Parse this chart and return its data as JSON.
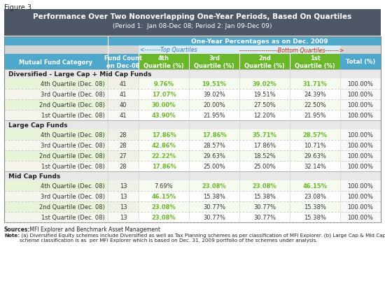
{
  "figure_label": "Figure 3",
  "title_line1": "Performance Over Two Nonoverlapping One-Year Periods, Based On Quartiles",
  "title_line2": "(Period 1:  Jan 08-Dec 08; Period 2: Jan 09-Dec 09)",
  "header_top": "One-Year Percentages as on Dec. 2009",
  "col_headers": [
    "Mutual Fund Category",
    "Fund Count\non Dec-08",
    "4th\nQuartile (%)",
    "3rd\nQuartile (%)",
    "2nd\nQuartile (%)",
    "1st\nQuartile (%)",
    "Total (%)"
  ],
  "sections": [
    {
      "section_label": "Diversified - Large Cap + Mid Cap Funds",
      "rows": [
        {
          "label": "4th Quartile (Dec. 08)",
          "count": "41",
          "vals": [
            "9.76%",
            "19.51%",
            "39.02%",
            "31.71%"
          ],
          "total": "100.00%",
          "green_cols": [
            0,
            1,
            2,
            3
          ]
        },
        {
          "label": "3rd Quartile (Dec. 08)",
          "count": "41",
          "vals": [
            "17.07%",
            "39.02%",
            "19.51%",
            "24.39%"
          ],
          "total": "100.00%",
          "green_cols": [
            0
          ]
        },
        {
          "label": "2nd Quartile (Dec. 08)",
          "count": "40",
          "vals": [
            "30.00%",
            "20.00%",
            "27.50%",
            "22.50%"
          ],
          "total": "100.00%",
          "green_cols": [
            0
          ]
        },
        {
          "label": "1st Quartile (Dec. 08)",
          "count": "41",
          "vals": [
            "43.90%",
            "21.95%",
            "12.20%",
            "21.95%"
          ],
          "total": "100.00%",
          "green_cols": [
            0
          ]
        }
      ]
    },
    {
      "section_label": "Large Cap Funds",
      "rows": [
        {
          "label": "4th Quartile (Dec. 08)",
          "count": "28",
          "vals": [
            "17.86%",
            "17.86%",
            "35.71%",
            "28.57%"
          ],
          "total": "100.00%",
          "green_cols": [
            0,
            1,
            2,
            3
          ]
        },
        {
          "label": "3rd Quartile (Dec. 08)",
          "count": "28",
          "vals": [
            "42.86%",
            "28.57%",
            "17.86%",
            "10.71%"
          ],
          "total": "100.00%",
          "green_cols": [
            0
          ]
        },
        {
          "label": "2nd Quartile (Dec. 08)",
          "count": "27",
          "vals": [
            "22.22%",
            "29.63%",
            "18.52%",
            "29.63%"
          ],
          "total": "100.00%",
          "green_cols": [
            0
          ]
        },
        {
          "label": "1st Quartile (Dec. 08)",
          "count": "28",
          "vals": [
            "17.86%",
            "25.00%",
            "25.00%",
            "32.14%"
          ],
          "total": "100.00%",
          "green_cols": [
            0
          ]
        }
      ]
    },
    {
      "section_label": "Mid Cap Funds",
      "rows": [
        {
          "label": "4th Quartile (Dec. 08)",
          "count": "13",
          "vals": [
            "7.69%",
            "23.08%",
            "23.08%",
            "46.15%"
          ],
          "total": "100.00%",
          "green_cols": [
            1,
            2,
            3
          ]
        },
        {
          "label": "3rd Quartile (Dec. 08)",
          "count": "13",
          "vals": [
            "46.15%",
            "15.38%",
            "15.38%",
            "23.08%"
          ],
          "total": "100.00%",
          "green_cols": [
            0
          ]
        },
        {
          "label": "2nd Quartile (Dec. 08)",
          "count": "13",
          "vals": [
            "23.08%",
            "30.77%",
            "30.77%",
            "15.38%"
          ],
          "total": "100.00%",
          "green_cols": [
            0
          ]
        },
        {
          "label": "1st Quartile (Dec. 08)",
          "count": "13",
          "vals": [
            "23.08%",
            "30.77%",
            "30.77%",
            "15.38%"
          ],
          "total": "100.00%",
          "green_cols": [
            0
          ]
        }
      ]
    }
  ],
  "sources_bold": "Sources:",
  "sources_rest": " MFI Explorer and Benchmark Asset Management",
  "note_bold": "Note:",
  "note_rest": " (a) Diversified Equity schemes include Diversified as well as Tax Planning schemes as per classification of MFI Explorer. (b) Large Cap & Mid Cap\nscheme classification is as  per MFI Explorer which is based on Dec. 31, 2009 portfolio of the schemes under analysis.",
  "title_bg": "#4d5766",
  "header_blue": "#4da8cc",
  "green_header": "#6ab82a",
  "green_text": "#6ab82a",
  "section_bg": "#e8e8e8",
  "row_green_bg": "#dff0d0",
  "row_white_bg": "#f5f5e8",
  "cell_bg_light": "#fffef5",
  "cell_bg_green": "#f0f8e8"
}
